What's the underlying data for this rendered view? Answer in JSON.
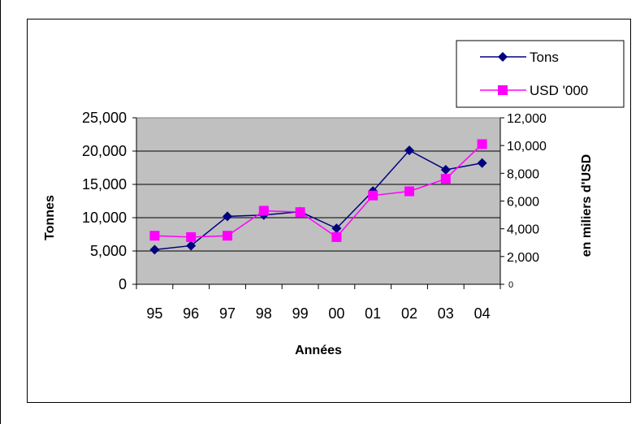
{
  "chart_data": {
    "type": "line",
    "categories": [
      "95",
      "96",
      "97",
      "98",
      "99",
      "00",
      "01",
      "02",
      "03",
      "04"
    ],
    "xlabel": "Années",
    "y1label": "Tonnes",
    "y2label": "en miliers d'USD",
    "y1lim": [
      0,
      25000
    ],
    "y2lim": [
      0,
      12000
    ],
    "y1ticks": [
      "0",
      "5,000",
      "10,000",
      "15,000",
      "20,000",
      "25,000"
    ],
    "y2ticks": [
      "0",
      "2,000",
      "4,000",
      "6,000",
      "8,000",
      "10,000",
      "12,000"
    ],
    "grid": true,
    "legend_position": "top-right",
    "series": [
      {
        "name": "Tons",
        "axis": "left",
        "marker": "diamond",
        "color": "#000080",
        "values": [
          5200,
          5800,
          10200,
          10400,
          10900,
          8400,
          14000,
          20100,
          17200,
          18200
        ]
      },
      {
        "name": "USD '000",
        "axis": "right",
        "marker": "square",
        "color": "#FF00FF",
        "values": [
          3500,
          3400,
          3500,
          5300,
          5200,
          3400,
          6400,
          6700,
          7600,
          10100
        ]
      }
    ],
    "plot_background": "#C0C0C0"
  }
}
